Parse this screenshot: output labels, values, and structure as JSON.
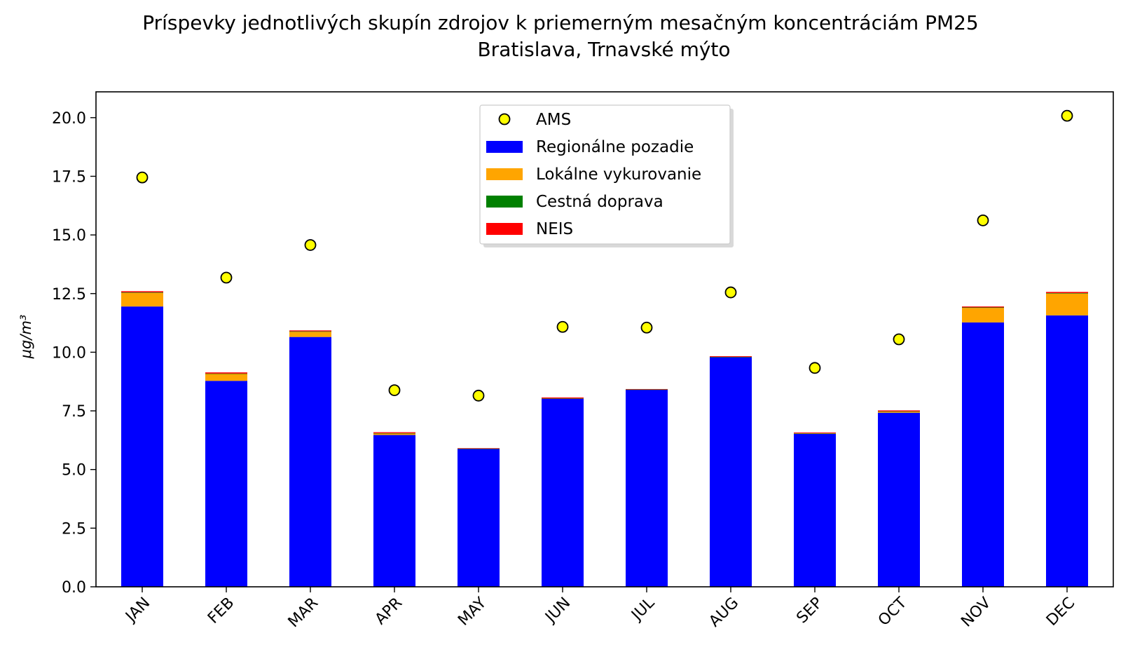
{
  "chart_data": {
    "type": "bar",
    "title_line1": "Príspevky jednotlivých skupín zdrojov k priemerným mesačným koncentráciám PM25",
    "title_line2": "Bratislava, Trnavské mýto",
    "ylabel": "μg/m³",
    "ylim": [
      0,
      21.1
    ],
    "yticks": [
      "0.0",
      "2.5",
      "5.0",
      "7.5",
      "10.0",
      "12.5",
      "15.0",
      "17.5",
      "20.0"
    ],
    "ytick_values": [
      0,
      2.5,
      5,
      7.5,
      10,
      12.5,
      15,
      17.5,
      20
    ],
    "categories": [
      "JAN",
      "FEB",
      "MAR",
      "APR",
      "MAY",
      "JUN",
      "JUL",
      "AUG",
      "SEP",
      "OCT",
      "NOV",
      "DEC"
    ],
    "stacked": true,
    "series": [
      {
        "name": "Regionálne pozadie",
        "color": "#0000ff",
        "values": [
          11.95,
          8.78,
          10.65,
          6.47,
          5.88,
          8.02,
          8.4,
          9.79,
          6.52,
          7.42,
          11.27,
          11.57
        ]
      },
      {
        "name": "Lokálne vykurovanie",
        "color": "#ffa500",
        "values": [
          0.58,
          0.3,
          0.22,
          0.07,
          0.0,
          0.0,
          0.0,
          0.0,
          0.02,
          0.05,
          0.62,
          0.93
        ]
      },
      {
        "name": "Cestná doprava",
        "color": "#008000",
        "values": [
          0.02,
          0.01,
          0.02,
          0.01,
          0.01,
          0.01,
          0.01,
          0.01,
          0.01,
          0.01,
          0.02,
          0.02
        ]
      },
      {
        "name": "NEIS",
        "color": "#ff0000",
        "values": [
          0.05,
          0.05,
          0.04,
          0.04,
          0.02,
          0.04,
          0.02,
          0.03,
          0.03,
          0.04,
          0.04,
          0.05
        ]
      }
    ],
    "ams": {
      "name": "AMS",
      "color": "#ffff00",
      "edge_color": "#000000",
      "values": [
        17.45,
        13.18,
        14.57,
        8.38,
        8.15,
        11.08,
        11.05,
        12.55,
        9.33,
        10.55,
        15.62,
        20.08
      ]
    },
    "legend_position": "upper-center",
    "grid": false
  }
}
